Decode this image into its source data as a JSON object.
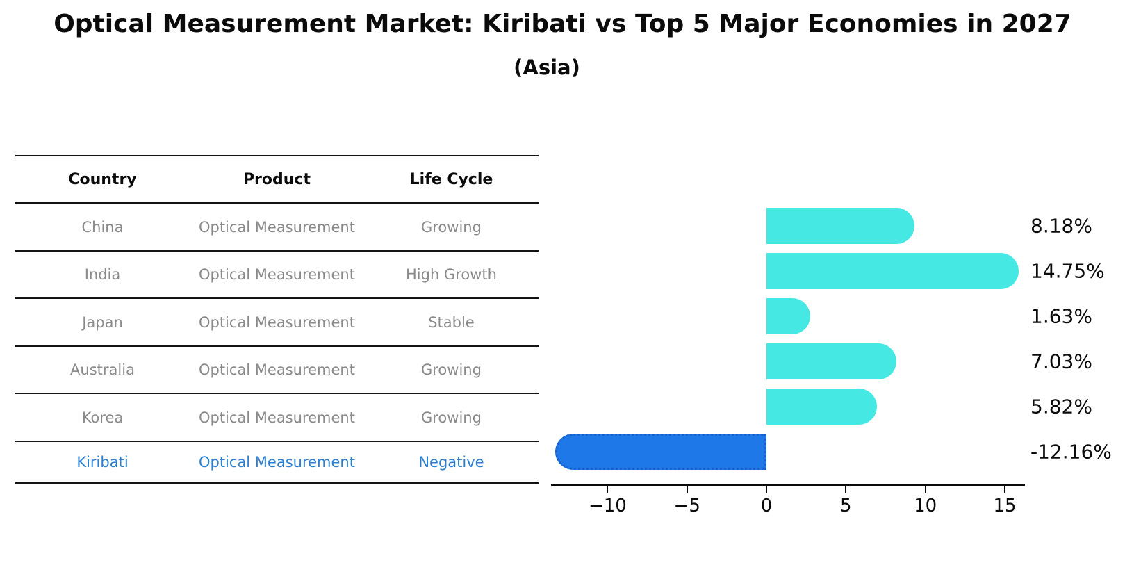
{
  "title": "Optical Measurement Market: Kiribati vs Top 5 Major Economies in 2027",
  "subtitle": "(Asia)",
  "table": {
    "headers": [
      "Country",
      "Product",
      "Life Cycle"
    ],
    "rows": [
      {
        "country": "China",
        "product": "Optical Measurement",
        "life_cycle": "Growing",
        "highlight": false
      },
      {
        "country": "India",
        "product": "Optical Measurement",
        "life_cycle": "High Growth",
        "highlight": false
      },
      {
        "country": "Japan",
        "product": "Optical Measurement",
        "life_cycle": "Stable",
        "highlight": false
      },
      {
        "country": "Australia",
        "product": "Optical Measurement",
        "life_cycle": "Growing",
        "highlight": false
      },
      {
        "country": "Korea",
        "product": "Optical Measurement",
        "life_cycle": "Growing",
        "highlight": false
      },
      {
        "country": "Kiribati",
        "product": "Optical Measurement",
        "life_cycle": "Negative",
        "highlight": true
      }
    ]
  },
  "chart_data": {
    "type": "bar",
    "orientation": "horizontal",
    "title": "Optical Measurement Market: Kiribati vs Top 5 Major Economies in 2027",
    "subtitle": "(Asia)",
    "categories": [
      "China",
      "India",
      "Japan",
      "Australia",
      "Korea",
      "Kiribati"
    ],
    "values": [
      8.18,
      14.75,
      1.63,
      7.03,
      5.82,
      -12.16
    ],
    "value_labels": [
      "8.18%",
      "14.75%",
      "1.63%",
      "7.03%",
      "5.82%",
      "-12.16%"
    ],
    "xlabel": "",
    "ylabel": "",
    "xlim": [
      -13.56,
      16.27
    ],
    "x_ticks": [
      -10,
      -5,
      0,
      5,
      10,
      15
    ],
    "x_tick_labels": [
      "−10",
      "−5",
      "0",
      "5",
      "10",
      "15"
    ],
    "grid": false,
    "legend": false,
    "colors": {
      "positive_bar": "#46e8e4",
      "negative_bar": "#1e78e8",
      "negative_bar_border": "#1a5fd0",
      "highlight_text": "#2b7fd0",
      "table_text": "#8a8a8a",
      "axis_text": "#0b0b0b"
    }
  }
}
